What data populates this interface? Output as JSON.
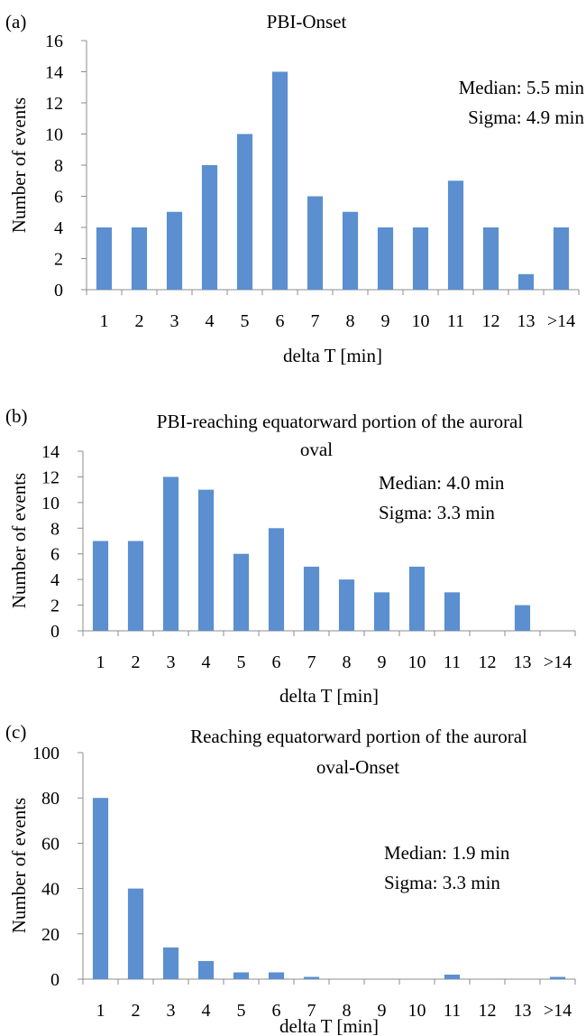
{
  "chart_data": [
    {
      "type": "bar",
      "panel_label": "(a)",
      "title": "PBI-Onset",
      "categories": [
        "1",
        "2",
        "3",
        "4",
        "5",
        "6",
        "7",
        "8",
        "9",
        "10",
        "11",
        "12",
        "13",
        ">14"
      ],
      "values": [
        4,
        4,
        5,
        8,
        10,
        14,
        6,
        5,
        4,
        4,
        7,
        4,
        1,
        4
      ],
      "xlabel": "delta T [min]",
      "ylabel": "Number of events",
      "ylim": [
        0,
        16
      ],
      "yticks": [
        0,
        2,
        4,
        6,
        8,
        10,
        12,
        14,
        16
      ],
      "grid": false,
      "legend": "none",
      "annotations": [
        "Median: 5.5 min",
        "Sigma: 4.9 min"
      ],
      "bar_color": "#5b8fcf"
    },
    {
      "type": "bar",
      "panel_label": "(b)",
      "title": "PBI-reaching equatorward portion of the auroral oval",
      "categories": [
        "1",
        "2",
        "3",
        "4",
        "5",
        "6",
        "7",
        "8",
        "9",
        "10",
        "11",
        "12",
        "13",
        ">14"
      ],
      "values": [
        7,
        7,
        12,
        11,
        6,
        8,
        5,
        4,
        3,
        5,
        3,
        0,
        2,
        0
      ],
      "xlabel": "delta T [min]",
      "ylabel": "Number of events",
      "ylim": [
        0,
        14
      ],
      "yticks": [
        0,
        2,
        4,
        6,
        8,
        10,
        12,
        14
      ],
      "grid": false,
      "legend": "none",
      "annotations": [
        "Median: 4.0 min",
        "Sigma: 3.3 min"
      ],
      "bar_color": "#5b8fcf"
    },
    {
      "type": "bar",
      "panel_label": "(c)",
      "title": "Reaching equatorward portion of the auroral oval-Onset",
      "categories": [
        "1",
        "2",
        "3",
        "4",
        "5",
        "6",
        "7",
        "8",
        "9",
        "10",
        "11",
        "12",
        "13",
        ">14"
      ],
      "values": [
        80,
        40,
        14,
        8,
        3,
        3,
        1,
        0,
        0,
        0,
        2,
        0,
        0,
        1
      ],
      "xlabel": "delta T [min]",
      "ylabel": "Number of events",
      "ylim": [
        0,
        100
      ],
      "yticks": [
        0,
        20,
        40,
        60,
        80,
        100
      ],
      "grid": false,
      "legend": "none",
      "annotations": [
        "Median: 1.9 min",
        "Sigma: 3.3 min"
      ],
      "bar_color": "#5b8fcf"
    }
  ]
}
